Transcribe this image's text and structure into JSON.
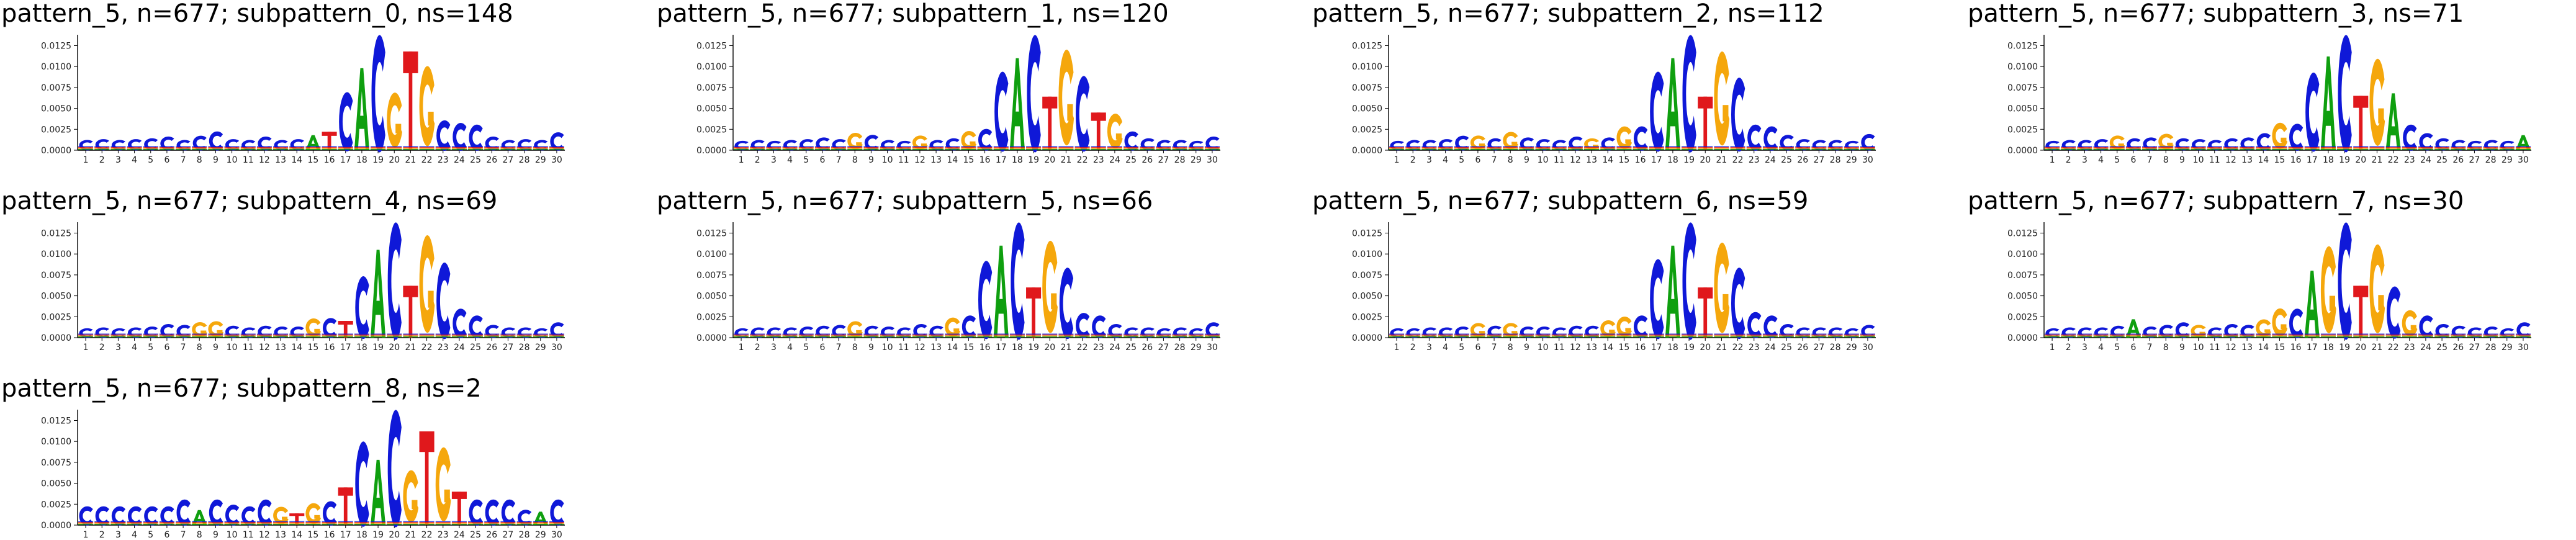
{
  "figure": {
    "background": "#ffffff"
  },
  "colors": {
    "A": "#0f9f0f",
    "C": "#0f18d8",
    "G": "#f5a70c",
    "T": "#e0181c"
  },
  "chart_data": [
    {
      "type": "sequence_logo",
      "title": "pattern_5, n=677; subpattern_0, ns=148",
      "yticks": [
        "0.0000",
        "0.0025",
        "0.0050",
        "0.0075",
        "0.0100",
        "0.0125"
      ],
      "ylim": [
        0,
        0.0135
      ],
      "positions": [
        "1",
        "2",
        "3",
        "4",
        "5",
        "6",
        "7",
        "8",
        "9",
        "10",
        "11",
        "12",
        "13",
        "14",
        "15",
        "16",
        "17",
        "18",
        "19",
        "20",
        "21",
        "22",
        "23",
        "24",
        "25",
        "26",
        "27",
        "28",
        "29",
        "30"
      ],
      "letters": [
        "C",
        "C",
        "C",
        "C",
        "C",
        "C",
        "C",
        "C",
        "C",
        "C",
        "C",
        "C",
        "C",
        "C",
        "A",
        "T",
        "C",
        "A",
        "C",
        "G",
        "T",
        "G",
        "C",
        "C",
        "C",
        "C",
        "C",
        "C",
        "C",
        "C"
      ],
      "values": [
        0.0012,
        0.0013,
        0.0012,
        0.0013,
        0.0014,
        0.0016,
        0.0012,
        0.0017,
        0.0022,
        0.0013,
        0.0012,
        0.0016,
        0.0012,
        0.0013,
        0.0018,
        0.0022,
        0.0068,
        0.0098,
        0.0135,
        0.0063,
        0.0118,
        0.0092,
        0.0035,
        0.0032,
        0.003,
        0.0016,
        0.0012,
        0.0013,
        0.0012,
        0.0021
      ]
    },
    {
      "type": "sequence_logo",
      "title": "pattern_5, n=677; subpattern_1, ns=120",
      "yticks": [
        "0.0000",
        "0.0025",
        "0.0050",
        "0.0075",
        "0.0100",
        "0.0125"
      ],
      "ylim": [
        0,
        0.0135
      ],
      "positions": [
        "1",
        "2",
        "3",
        "4",
        "5",
        "6",
        "7",
        "8",
        "9",
        "10",
        "11",
        "12",
        "13",
        "14",
        "15",
        "16",
        "17",
        "18",
        "19",
        "20",
        "21",
        "22",
        "23",
        "24",
        "25",
        "26",
        "27",
        "28",
        "29",
        "30"
      ],
      "letters": [
        "C",
        "C",
        "C",
        "C",
        "C",
        "C",
        "C",
        "G",
        "C",
        "C",
        "C",
        "G",
        "C",
        "C",
        "G",
        "C",
        "C",
        "A",
        "C",
        "T",
        "G",
        "C",
        "T",
        "G",
        "C",
        "C",
        "C",
        "C",
        "C",
        "C"
      ],
      "values": [
        0.0011,
        0.0012,
        0.0011,
        0.0012,
        0.0013,
        0.0015,
        0.0013,
        0.0019,
        0.0018,
        0.0012,
        0.0011,
        0.0016,
        0.0012,
        0.0014,
        0.0021,
        0.0025,
        0.0092,
        0.011,
        0.0135,
        0.0064,
        0.011,
        0.0087,
        0.0045,
        0.004,
        0.0022,
        0.0014,
        0.0012,
        0.0012,
        0.0011,
        0.0016
      ]
    },
    {
      "type": "sequence_logo",
      "title": "pattern_5, n=677; subpattern_2, ns=112",
      "yticks": [
        "0.0000",
        "0.0025",
        "0.0050",
        "0.0075",
        "0.0100",
        "0.0125"
      ],
      "ylim": [
        0,
        0.0135
      ],
      "positions": [
        "1",
        "2",
        "3",
        "4",
        "5",
        "6",
        "7",
        "8",
        "9",
        "10",
        "11",
        "12",
        "13",
        "14",
        "15",
        "16",
        "17",
        "18",
        "19",
        "20",
        "21",
        "22",
        "23",
        "24",
        "25",
        "26",
        "27",
        "28",
        "29",
        "30"
      ],
      "letters": [
        "C",
        "C",
        "C",
        "C",
        "C",
        "G",
        "C",
        "G",
        "C",
        "C",
        "C",
        "C",
        "G",
        "C",
        "G",
        "C",
        "C",
        "A",
        "C",
        "T",
        "G",
        "C",
        "C",
        "C",
        "C",
        "C",
        "C",
        "C",
        "C",
        "C"
      ],
      "values": [
        0.0011,
        0.0012,
        0.0012,
        0.0013,
        0.0017,
        0.0016,
        0.0014,
        0.002,
        0.0015,
        0.0013,
        0.0012,
        0.0016,
        0.0013,
        0.0015,
        0.0026,
        0.0028,
        0.0092,
        0.011,
        0.0135,
        0.0064,
        0.0108,
        0.0085,
        0.003,
        0.0028,
        0.0018,
        0.0013,
        0.0012,
        0.0012,
        0.0011,
        0.0019
      ]
    },
    {
      "type": "sequence_logo",
      "title": "pattern_5, n=677; subpattern_3, ns=71",
      "yticks": [
        "0.0000",
        "0.0025",
        "0.0050",
        "0.0075",
        "0.0100",
        "0.0125"
      ],
      "ylim": [
        0,
        0.0135
      ],
      "positions": [
        "1",
        "2",
        "3",
        "4",
        "5",
        "6",
        "7",
        "8",
        "9",
        "10",
        "11",
        "12",
        "13",
        "14",
        "15",
        "16",
        "17",
        "18",
        "19",
        "20",
        "21",
        "22",
        "23",
        "24",
        "25",
        "26",
        "27",
        "28",
        "29",
        "30"
      ],
      "letters": [
        "C",
        "C",
        "C",
        "C",
        "G",
        "C",
        "C",
        "G",
        "C",
        "C",
        "C",
        "C",
        "C",
        "C",
        "G",
        "C",
        "C",
        "A",
        "C",
        "T",
        "G",
        "A",
        "C",
        "C",
        "C",
        "C",
        "C",
        "C",
        "C",
        "A"
      ],
      "values": [
        0.0011,
        0.0012,
        0.0012,
        0.0013,
        0.0016,
        0.0014,
        0.0015,
        0.0018,
        0.0014,
        0.0013,
        0.0012,
        0.0014,
        0.0015,
        0.002,
        0.003,
        0.0031,
        0.0091,
        0.0112,
        0.0135,
        0.0065,
        0.01,
        0.0068,
        0.003,
        0.002,
        0.0014,
        0.0012,
        0.0011,
        0.0012,
        0.0011,
        0.0018
      ]
    },
    {
      "type": "sequence_logo",
      "title": "pattern_5, n=677; subpattern_4, ns=69",
      "yticks": [
        "0.0000",
        "0.0025",
        "0.0050",
        "0.0075",
        "0.0100",
        "0.0125"
      ],
      "ylim": [
        0,
        0.0135
      ],
      "positions": [
        "1",
        "2",
        "3",
        "4",
        "5",
        "6",
        "7",
        "8",
        "9",
        "10",
        "11",
        "12",
        "13",
        "14",
        "15",
        "16",
        "17",
        "18",
        "19",
        "20",
        "21",
        "22",
        "23",
        "24",
        "25",
        "26",
        "27",
        "28",
        "29",
        "30"
      ],
      "letters": [
        "C",
        "C",
        "C",
        "C",
        "C",
        "C",
        "C",
        "G",
        "G",
        "C",
        "C",
        "C",
        "C",
        "C",
        "G",
        "C",
        "T",
        "C",
        "A",
        "C",
        "T",
        "G",
        "C",
        "C",
        "C",
        "C",
        "C",
        "C",
        "C",
        "C"
      ],
      "values": [
        0.0011,
        0.0012,
        0.0011,
        0.0012,
        0.0013,
        0.0016,
        0.0015,
        0.0017,
        0.0018,
        0.0014,
        0.0012,
        0.0014,
        0.0013,
        0.0013,
        0.0021,
        0.0023,
        0.002,
        0.0072,
        0.0105,
        0.0135,
        0.0062,
        0.0112,
        0.0088,
        0.0034,
        0.0026,
        0.0015,
        0.0012,
        0.0012,
        0.0011,
        0.0018
      ]
    },
    {
      "type": "sequence_logo",
      "title": "pattern_5, n=677; subpattern_5, ns=66",
      "yticks": [
        "0.0000",
        "0.0025",
        "0.0050",
        "0.0075",
        "0.0100",
        "0.0125"
      ],
      "ylim": [
        0,
        0.0135
      ],
      "positions": [
        "1",
        "2",
        "3",
        "4",
        "5",
        "6",
        "7",
        "8",
        "9",
        "10",
        "11",
        "12",
        "13",
        "14",
        "15",
        "16",
        "17",
        "18",
        "19",
        "20",
        "21",
        "22",
        "23",
        "24",
        "25",
        "26",
        "27",
        "28",
        "29",
        "30"
      ],
      "letters": [
        "C",
        "C",
        "C",
        "C",
        "C",
        "C",
        "C",
        "G",
        "C",
        "C",
        "C",
        "C",
        "C",
        "G",
        "C",
        "C",
        "A",
        "C",
        "T",
        "G",
        "C",
        "C",
        "C",
        "C",
        "C",
        "C",
        "C",
        "C",
        "C",
        "C"
      ],
      "values": [
        0.0011,
        0.0012,
        0.0012,
        0.0012,
        0.0013,
        0.0014,
        0.0015,
        0.0018,
        0.0014,
        0.0013,
        0.0012,
        0.0016,
        0.0014,
        0.0022,
        0.0026,
        0.009,
        0.011,
        0.0135,
        0.006,
        0.0106,
        0.0082,
        0.0029,
        0.0026,
        0.0016,
        0.0012,
        0.0012,
        0.0011,
        0.0012,
        0.0011,
        0.0018
      ]
    },
    {
      "type": "sequence_logo",
      "title": "pattern_5, n=677; subpattern_6, ns=59",
      "yticks": [
        "0.0000",
        "0.0025",
        "0.0050",
        "0.0075",
        "0.0100",
        "0.0125"
      ],
      "ylim": [
        0,
        0.0135
      ],
      "positions": [
        "1",
        "2",
        "3",
        "4",
        "5",
        "6",
        "7",
        "8",
        "9",
        "10",
        "11",
        "12",
        "13",
        "14",
        "15",
        "16",
        "17",
        "18",
        "19",
        "20",
        "21",
        "22",
        "23",
        "24",
        "25",
        "26",
        "27",
        "28",
        "29",
        "30"
      ],
      "letters": [
        "C",
        "C",
        "C",
        "C",
        "C",
        "G",
        "C",
        "G",
        "C",
        "C",
        "C",
        "C",
        "C",
        "G",
        "G",
        "C",
        "C",
        "A",
        "C",
        "T",
        "G",
        "C",
        "C",
        "C",
        "C",
        "C",
        "C",
        "C",
        "C",
        "C"
      ],
      "values": [
        0.0011,
        0.0011,
        0.0012,
        0.0012,
        0.0013,
        0.0016,
        0.0014,
        0.0016,
        0.0013,
        0.0013,
        0.0012,
        0.0014,
        0.0014,
        0.0019,
        0.0023,
        0.0026,
        0.0092,
        0.011,
        0.0135,
        0.006,
        0.0104,
        0.0082,
        0.003,
        0.0026,
        0.0016,
        0.0012,
        0.0012,
        0.0012,
        0.0011,
        0.0015
      ]
    },
    {
      "type": "sequence_logo",
      "title": "pattern_5, n=677; subpattern_7, ns=30",
      "yticks": [
        "0.0000",
        "0.0025",
        "0.0050",
        "0.0075",
        "0.0100",
        "0.0125"
      ],
      "ylim": [
        0,
        0.0135
      ],
      "positions": [
        "1",
        "2",
        "3",
        "4",
        "5",
        "6",
        "7",
        "8",
        "9",
        "10",
        "11",
        "12",
        "13",
        "14",
        "15",
        "16",
        "17",
        "18",
        "19",
        "20",
        "21",
        "22",
        "23",
        "24",
        "25",
        "26",
        "27",
        "28",
        "29",
        "30"
      ],
      "letters": [
        "C",
        "C",
        "C",
        "C",
        "C",
        "A",
        "C",
        "C",
        "C",
        "G",
        "C",
        "C",
        "C",
        "G",
        "G",
        "C",
        "A",
        "G",
        "C",
        "T",
        "G",
        "C",
        "G",
        "C",
        "C",
        "C",
        "C",
        "C",
        "C",
        "C"
      ],
      "values": [
        0.0011,
        0.0012,
        0.0012,
        0.0012,
        0.0014,
        0.0022,
        0.0013,
        0.0015,
        0.0018,
        0.0014,
        0.0012,
        0.0016,
        0.0015,
        0.002,
        0.0032,
        0.0034,
        0.008,
        0.01,
        0.0135,
        0.0062,
        0.0102,
        0.006,
        0.003,
        0.0026,
        0.0016,
        0.0014,
        0.0012,
        0.0013,
        0.0011,
        0.0018
      ]
    },
    {
      "type": "sequence_logo",
      "title": "pattern_5, n=677; subpattern_8, ns=2",
      "yticks": [
        "0.0000",
        "0.0025",
        "0.0050",
        "0.0075",
        "0.0100",
        "0.0125"
      ],
      "ylim": [
        0,
        0.0135
      ],
      "positions": [
        "1",
        "2",
        "3",
        "4",
        "5",
        "6",
        "7",
        "8",
        "9",
        "10",
        "11",
        "12",
        "13",
        "14",
        "15",
        "16",
        "17",
        "18",
        "19",
        "20",
        "21",
        "22",
        "23",
        "24",
        "25",
        "26",
        "27",
        "28",
        "29",
        "30"
      ],
      "letters": [
        "C",
        "C",
        "C",
        "C",
        "C",
        "C",
        "C",
        "A",
        "C",
        "C",
        "C",
        "C",
        "G",
        "T",
        "G",
        "C",
        "T",
        "C",
        "A",
        "C",
        "G",
        "T",
        "G",
        "T",
        "C",
        "C",
        "C",
        "C",
        "A",
        "C"
      ],
      "values": [
        0.0022,
        0.0022,
        0.0022,
        0.0022,
        0.0022,
        0.0022,
        0.003,
        0.0018,
        0.003,
        0.0024,
        0.0022,
        0.003,
        0.002,
        0.0014,
        0.0024,
        0.0028,
        0.0045,
        0.0098,
        0.0078,
        0.0135,
        0.006,
        0.0112,
        0.0085,
        0.004,
        0.003,
        0.003,
        0.003,
        0.0018,
        0.0016,
        0.003
      ]
    }
  ]
}
